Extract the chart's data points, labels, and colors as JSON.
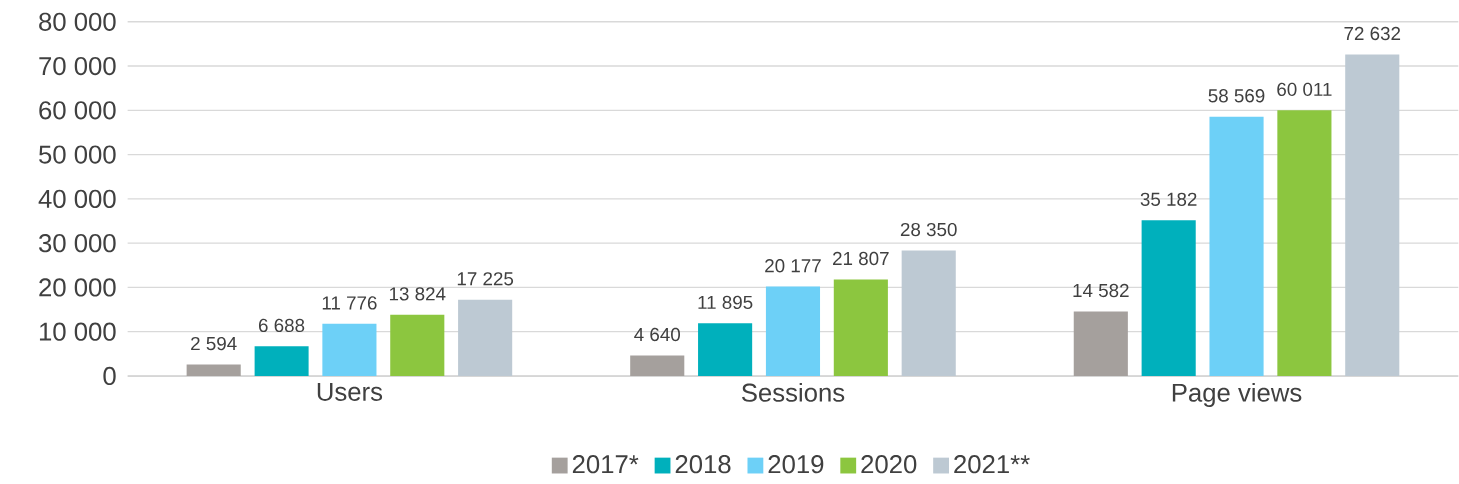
{
  "chart_data": {
    "type": "bar",
    "categories": [
      "Users",
      "Sessions",
      "Page views"
    ],
    "series": [
      {
        "name": "2017*",
        "color": "#a5a09d",
        "values": [
          2594,
          4640,
          14582
        ],
        "value_labels": [
          "2 594",
          "4 640",
          "14 582"
        ]
      },
      {
        "name": "2018",
        "color": "#00b0bc",
        "values": [
          6688,
          11895,
          35182
        ],
        "value_labels": [
          "6 688",
          "11 895",
          "35 182"
        ]
      },
      {
        "name": "2019",
        "color": "#6dd0f7",
        "values": [
          11776,
          20177,
          58569
        ],
        "value_labels": [
          "11 776",
          "20 177",
          "58 569"
        ]
      },
      {
        "name": "2020",
        "color": "#8cc63f",
        "values": [
          13824,
          21807,
          60011
        ],
        "value_labels": [
          "13 824",
          "21 807",
          "60 011"
        ]
      },
      {
        "name": "2021**",
        "color": "#bdc9d3",
        "values": [
          17225,
          28350,
          72632
        ],
        "value_labels": [
          "17 225",
          "28 350",
          "72 632"
        ]
      }
    ],
    "ylim": [
      0,
      80000
    ],
    "yticks": [
      0,
      {
        "value": 10000,
        "label": "10 000"
      },
      {
        "value": 20000,
        "label": "20 000"
      },
      {
        "value": 30000,
        "label": "30 000"
      },
      {
        "value": 40000,
        "label": "40 000"
      },
      {
        "value": 50000,
        "label": "50 000"
      },
      {
        "value": 60000,
        "label": "60 000"
      },
      {
        "value": 70000,
        "label": "70 000"
      },
      {
        "value": 80000,
        "label": "80 000"
      }
    ],
    "grid": "y",
    "legend": "bottom"
  }
}
